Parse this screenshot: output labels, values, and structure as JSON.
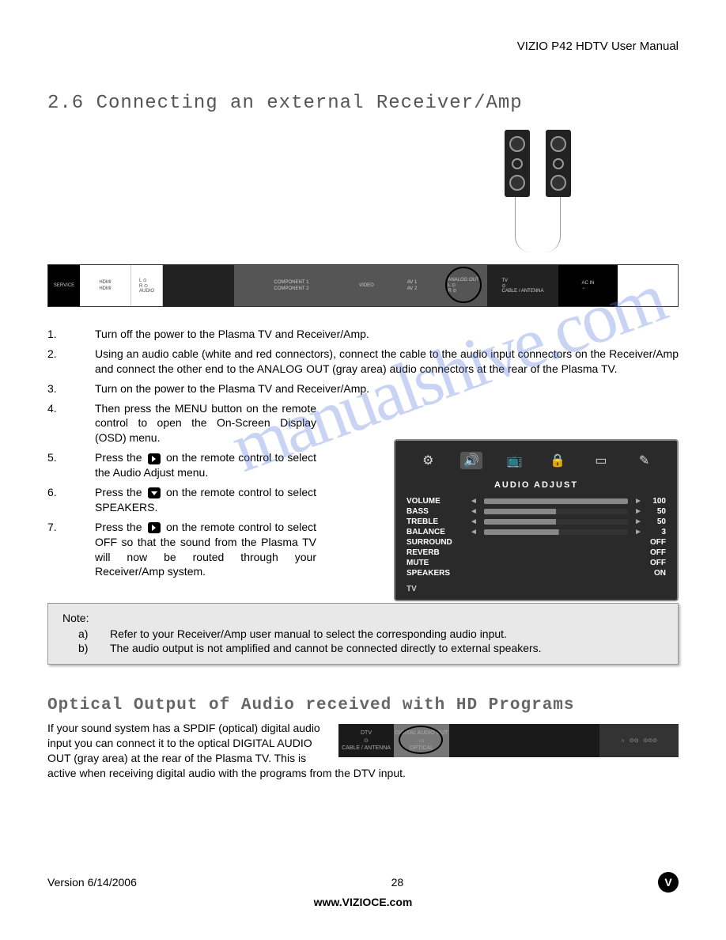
{
  "header": {
    "product": "VIZIO P42 HDTV User Manual"
  },
  "section": {
    "number": "2.6",
    "title": "Connecting an external Receiver/Amp"
  },
  "watermark": "manualshive.com",
  "rear_panel": {
    "segments": [
      {
        "bg": "black",
        "label": "SERVICE",
        "width": 40
      },
      {
        "bg": "white",
        "label": "HDMI",
        "sub": "HDMI",
        "width": 65
      },
      {
        "bg": "white",
        "label": "L ⊙\nR ⊙\nAUDIO",
        "width": 40
      },
      {
        "bg": "dark",
        "label": "",
        "width": 90
      },
      {
        "bg": "gray",
        "label": "COMPONENT 1",
        "sub": "COMPONENT 2",
        "width": 145
      },
      {
        "bg": "gray",
        "label": "VIDEO",
        "width": 45
      },
      {
        "bg": "gray",
        "label": "AV 1",
        "sub": "AV 2",
        "width": 70
      },
      {
        "bg": "gray",
        "label": "ANALOG OUT\nL ⊙\nR ⊙",
        "width": 60,
        "circled": true
      },
      {
        "bg": "dark",
        "label": "TV\n⊙\nCABLE / ANTENNA",
        "width": 90
      },
      {
        "bg": "black",
        "label": "AC IN\n←",
        "width": 75
      }
    ]
  },
  "steps": [
    {
      "n": "1.",
      "text": "Turn off the power to the Plasma TV and Receiver/Amp.",
      "narrow": false
    },
    {
      "n": "2.",
      "text": "Using an audio cable (white and red connectors), connect the cable to the audio input connectors on the Receiver/Amp and connect the other end to the ANALOG OUT (gray area) audio connectors at the rear of the Plasma TV.",
      "narrow": false
    },
    {
      "n": "3.",
      "text": "Turn on the power to the Plasma TV and Receiver/Amp.",
      "narrow": false
    },
    {
      "n": "4.",
      "text": "Then press the MENU button on the remote control to open the On-Screen Display (OSD) menu.",
      "narrow": true
    },
    {
      "n": "5.",
      "pre": "Press the ",
      "icon": "right",
      "post": " on the remote control to select the Audio Adjust menu.",
      "narrow": true
    },
    {
      "n": "6.",
      "pre": "Press the ",
      "icon": "down",
      "post": " on the remote control to select SPEAKERS.",
      "narrow": true
    },
    {
      "n": "7.",
      "pre": "Press the ",
      "icon": "right",
      "post": " on the remote control to select OFF so that the sound from the Plasma TV will now be routed through your Receiver/Amp system.",
      "narrow": true
    }
  ],
  "osd": {
    "title": "AUDIO ADJUST",
    "tabs": [
      "⚙",
      "🔊",
      "📺",
      "🔒",
      "▭",
      "✎"
    ],
    "active_tab": 1,
    "rows_bar": [
      {
        "label": "VOLUME",
        "val": "100",
        "fill": 100
      },
      {
        "label": "BASS",
        "val": "50",
        "fill": 50
      },
      {
        "label": "TREBLE",
        "val": "50",
        "fill": 50
      },
      {
        "label": "BALANCE",
        "val": "3",
        "fill": 52
      }
    ],
    "rows_toggle": [
      {
        "label": "SURROUND",
        "val": "OFF"
      },
      {
        "label": "REVERB",
        "val": "OFF"
      },
      {
        "label": "MUTE",
        "val": "OFF"
      },
      {
        "label": "SPEAKERS",
        "val": "ON"
      }
    ],
    "footer": "TV"
  },
  "note": {
    "title": "Note:",
    "items": [
      {
        "letter": "a)",
        "text": "Refer to your Receiver/Amp user manual to select the corresponding audio input."
      },
      {
        "letter": "b)",
        "text": "The audio output is not amplified and cannot be connected directly to external speakers."
      }
    ]
  },
  "subsection": {
    "title": "Optical Output of Audio received with HD Programs",
    "text": "If your sound system has a SPDIF (optical) digital audio input you can connect it to the optical DIGITAL AUDIO OUT (gray area) at the rear of the Plasma TV.  This is active when receiving digital audio with the programs from the DTV input."
  },
  "optical_panel": {
    "segments": [
      {
        "label": "DTV\n⊙\nCABLE / ANTENNA",
        "width": 70,
        "bg": "#1a1a1a"
      },
      {
        "label": "DIGITAL AUDIO OUT\n▭\nOPTICAL",
        "width": 70,
        "bg": "#777",
        "circled": true
      },
      {
        "label": "",
        "width": 190,
        "bg": "#1a1a1a"
      },
      {
        "label": "∩   ⊙⊙   ⊙⊙⊙",
        "width": 100,
        "bg": "#333"
      }
    ]
  },
  "footer": {
    "version": "Version 6/14/2006",
    "page": "28",
    "url": "www.VIZIOCE.com",
    "logo": "V"
  }
}
